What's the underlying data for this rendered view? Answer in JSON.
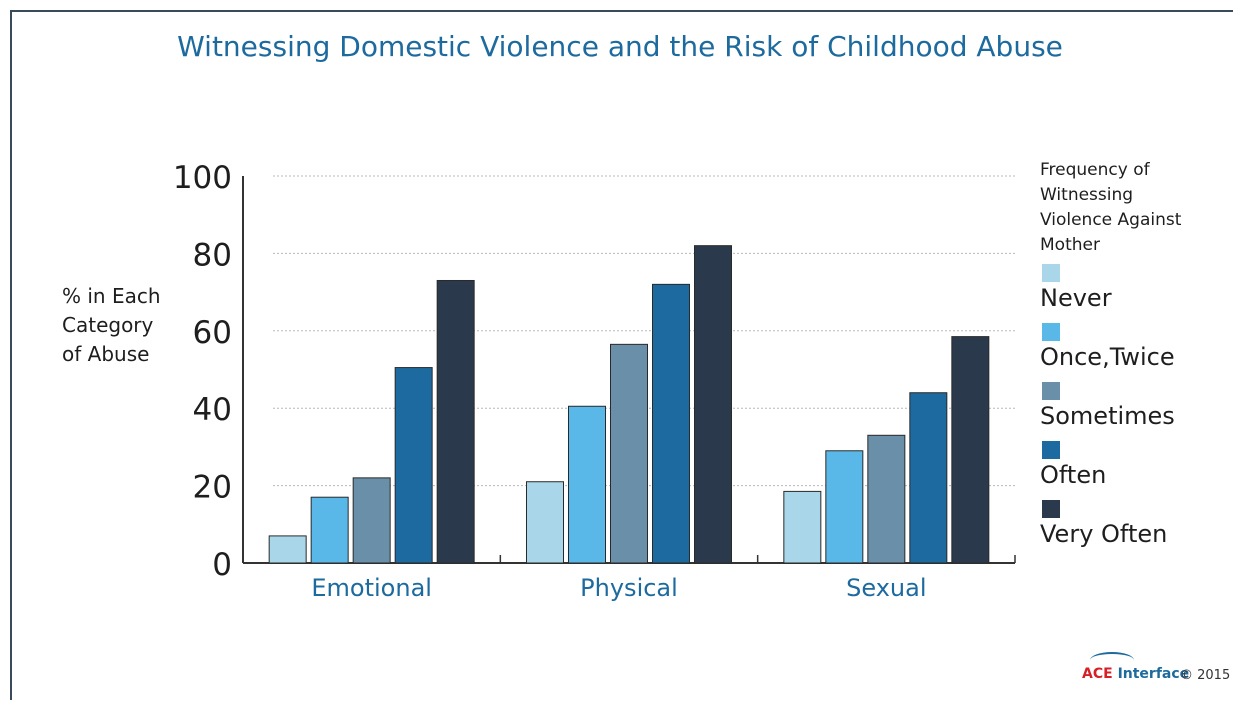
{
  "chart_data": {
    "type": "bar",
    "title": "Witnessing Domestic Violence and the Risk of Childhood Abuse",
    "ylabel_lines": [
      "% in Each",
      "Category",
      "of Abuse"
    ],
    "categories": [
      "Emotional",
      "Physical",
      "Sexual"
    ],
    "ylim": [
      0,
      100
    ],
    "yticks": [
      "0",
      "20",
      "40",
      "60",
      "80",
      "100"
    ],
    "grid": true,
    "legend_placement": "right",
    "legend_title_lines": [
      "Frequency of",
      "Witnessing",
      "Violence Against",
      "Mother"
    ],
    "series": [
      {
        "name": "Never",
        "color": "#a9d6e8",
        "values": [
          7,
          21,
          18.5
        ]
      },
      {
        "name": "Once,Twice",
        "color": "#5ab8e8",
        "values": [
          17,
          40.5,
          29
        ]
      },
      {
        "name": "Sometimes",
        "color": "#6a8fa8",
        "values": [
          22,
          56.5,
          33
        ]
      },
      {
        "name": "Often",
        "color": "#1c6aa0",
        "values": [
          50.5,
          72,
          44
        ]
      },
      {
        "name": "Very Often",
        "color": "#2a3a4c",
        "values": [
          73,
          82,
          58.5
        ]
      }
    ]
  },
  "footer": {
    "brand_ace": "ACE",
    "brand_rest": "Interface",
    "copyright": "© 2015"
  }
}
